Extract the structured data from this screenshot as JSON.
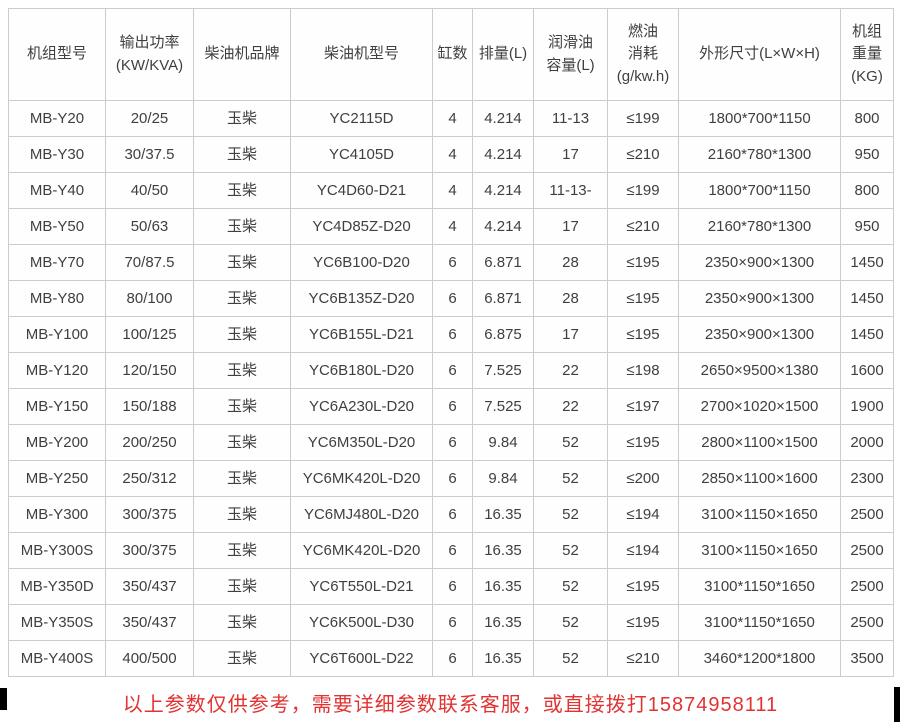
{
  "colors": {
    "border": "#cccccc",
    "text": "#3f3f3f",
    "footer_red": "#e23333",
    "background": "#ffffff"
  },
  "table": {
    "columns": [
      "机组型号",
      "输出功率\n(KW/KVA)",
      "柴油机品牌",
      "柴油机型号",
      "缸数",
      "排量(L)",
      "润滑油\n容量(L)",
      "燃油\n消耗\n(g/kw.h)",
      "外形尺寸(L×W×H)",
      "机组\n重量\n(KG)"
    ],
    "rows": [
      [
        "MB-Y20",
        "20/25",
        "玉柴",
        "YC2115D",
        "4",
        "4.214",
        "11-13",
        "≤199",
        "1800*700*1150",
        "800"
      ],
      [
        "MB-Y30",
        "30/37.5",
        "玉柴",
        "YC4105D",
        "4",
        "4.214",
        "17",
        "≤210",
        "2160*780*1300",
        "950"
      ],
      [
        "MB-Y40",
        "40/50",
        "玉柴",
        "YC4D60-D21",
        "4",
        "4.214",
        "11-13-",
        "≤199",
        "1800*700*1150",
        "800"
      ],
      [
        "MB-Y50",
        "50/63",
        "玉柴",
        "YC4D85Z-D20",
        "4",
        "4.214",
        "17",
        "≤210",
        "2160*780*1300",
        "950"
      ],
      [
        "MB-Y70",
        "70/87.5",
        "玉柴",
        "YC6B100-D20",
        "6",
        "6.871",
        "28",
        "≤195",
        "2350×900×1300",
        "1450"
      ],
      [
        "MB-Y80",
        "80/100",
        "玉柴",
        "YC6B135Z-D20",
        "6",
        "6.871",
        "28",
        "≤195",
        "2350×900×1300",
        "1450"
      ],
      [
        "MB-Y100",
        "100/125",
        "玉柴",
        "YC6B155L-D21",
        "6",
        "6.875",
        "17",
        "≤195",
        "2350×900×1300",
        "1450"
      ],
      [
        "MB-Y120",
        "120/150",
        "玉柴",
        "YC6B180L-D20",
        "6",
        "7.525",
        "22",
        "≤198",
        "2650×9500×1380",
        "1600"
      ],
      [
        "MB-Y150",
        "150/188",
        "玉柴",
        "YC6A230L-D20",
        "6",
        "7.525",
        "22",
        "≤197",
        "2700×1020×1500",
        "1900"
      ],
      [
        "MB-Y200",
        "200/250",
        "玉柴",
        "YC6M350L-D20",
        "6",
        "9.84",
        "52",
        "≤195",
        "2800×1100×1500",
        "2000"
      ],
      [
        "MB-Y250",
        "250/312",
        "玉柴",
        "YC6MK420L-D20",
        "6",
        "9.84",
        "52",
        "≤200",
        "2850×1100×1600",
        "2300"
      ],
      [
        "MB-Y300",
        "300/375",
        "玉柴",
        "YC6MJ480L-D20",
        "6",
        "16.35",
        "52",
        "≤194",
        "3100×1150×1650",
        "2500"
      ],
      [
        "MB-Y300S",
        "300/375",
        "玉柴",
        "YC6MK420L-D20",
        "6",
        "16.35",
        "52",
        "≤194",
        "3100×1150×1650",
        "2500"
      ],
      [
        "MB-Y350D",
        "350/437",
        "玉柴",
        "YC6T550L-D21",
        "6",
        "16.35",
        "52",
        "≤195",
        "3100*1150*1650",
        "2500"
      ],
      [
        "MB-Y350S",
        "350/437",
        "玉柴",
        "YC6K500L-D30",
        "6",
        "16.35",
        "52",
        "≤195",
        "3100*1150*1650",
        "2500"
      ],
      [
        "MB-Y400S",
        "400/500",
        "玉柴",
        "YC6T600L-D22",
        "6",
        "16.35",
        "52",
        "≤210",
        "3460*1200*1800",
        "3500"
      ]
    ]
  },
  "footer": {
    "notice": "以上参数仅供参考，需要详细参数联系客服，或直接拨打15874958111"
  }
}
